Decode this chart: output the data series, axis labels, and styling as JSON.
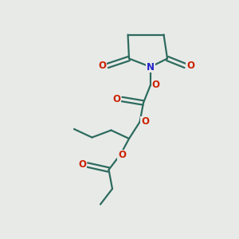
{
  "background_color": "#e8eae8",
  "bond_color": "#2d6b5e",
  "o_color": "#cc2200",
  "n_color": "#2222cc",
  "line_width": 1.6,
  "font_size_atom": 8.5,
  "fig_w": 3.0,
  "fig_h": 3.0,
  "dpi": 100,
  "xlim": [
    0,
    10
  ],
  "ylim": [
    0,
    10
  ]
}
